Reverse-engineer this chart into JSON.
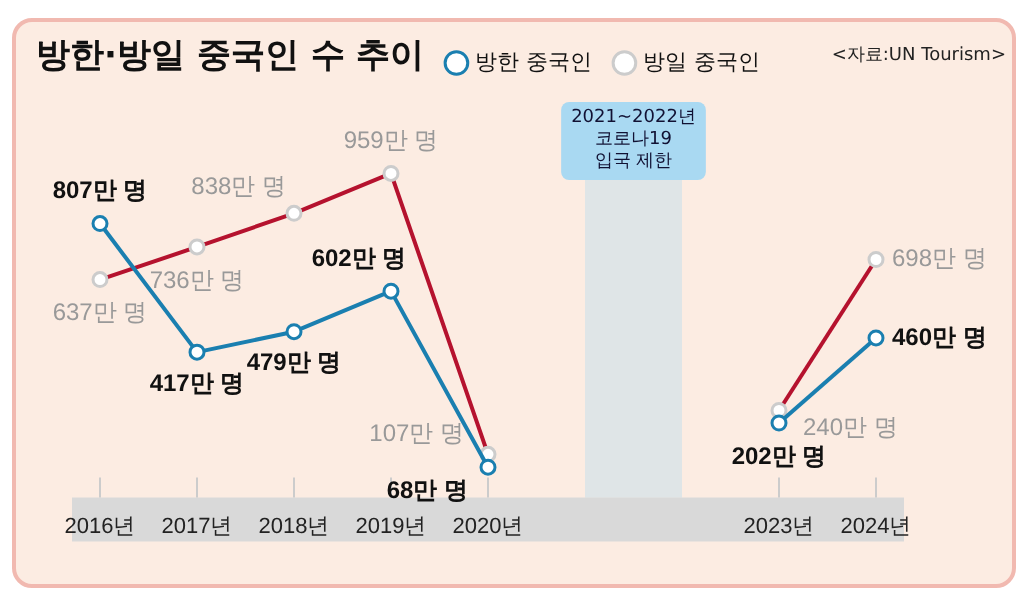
{
  "chart_data": {
    "type": "line",
    "title": "방한·방일 중국인 수 추이",
    "legend": "top",
    "marker": "circle",
    "line_style": "solid",
    "grid": false,
    "x": [
      2016,
      2017,
      2018,
      2019,
      2020,
      2023,
      2024
    ],
    "xlim": [
      2016,
      2024
    ],
    "xticks": [
      {
        "value": 2016,
        "label": "2016년"
      },
      {
        "value": 2017,
        "label": "2017년"
      },
      {
        "value": 2018,
        "label": "2018년"
      },
      {
        "value": 2019,
        "label": "2019년"
      },
      {
        "value": 2020,
        "label": "2020년"
      },
      {
        "value": 2023,
        "label": "2023년"
      },
      {
        "value": 2024,
        "label": "2024년"
      }
    ],
    "series": [
      {
        "name": "방한 중국인",
        "color": "#1a7fb0",
        "values": [
          807,
          417,
          479,
          602,
          68,
          202,
          460
        ],
        "value_labels": [
          "807만 명",
          "417만 명",
          "479만 명",
          "602만 명",
          "68만 명",
          "202만 명",
          "460만 명"
        ]
      },
      {
        "name": "방일 중국인",
        "color": "#b5122e",
        "values": [
          637,
          736,
          838,
          959,
          107,
          240,
          698
        ],
        "value_labels": [
          "637만 명",
          "736만 명",
          "838만 명",
          "959만 명",
          "107만 명",
          "240만 명",
          "698만 명"
        ]
      }
    ],
    "bands": [
      {
        "axis": "x",
        "from": 2021,
        "to": 2022,
        "label": "2021~2022년\n코로나19\n입국 제한",
        "color": "#a9d9f2"
      }
    ],
    "annotations": [
      "<자료:UN Tourism>"
    ]
  }
}
